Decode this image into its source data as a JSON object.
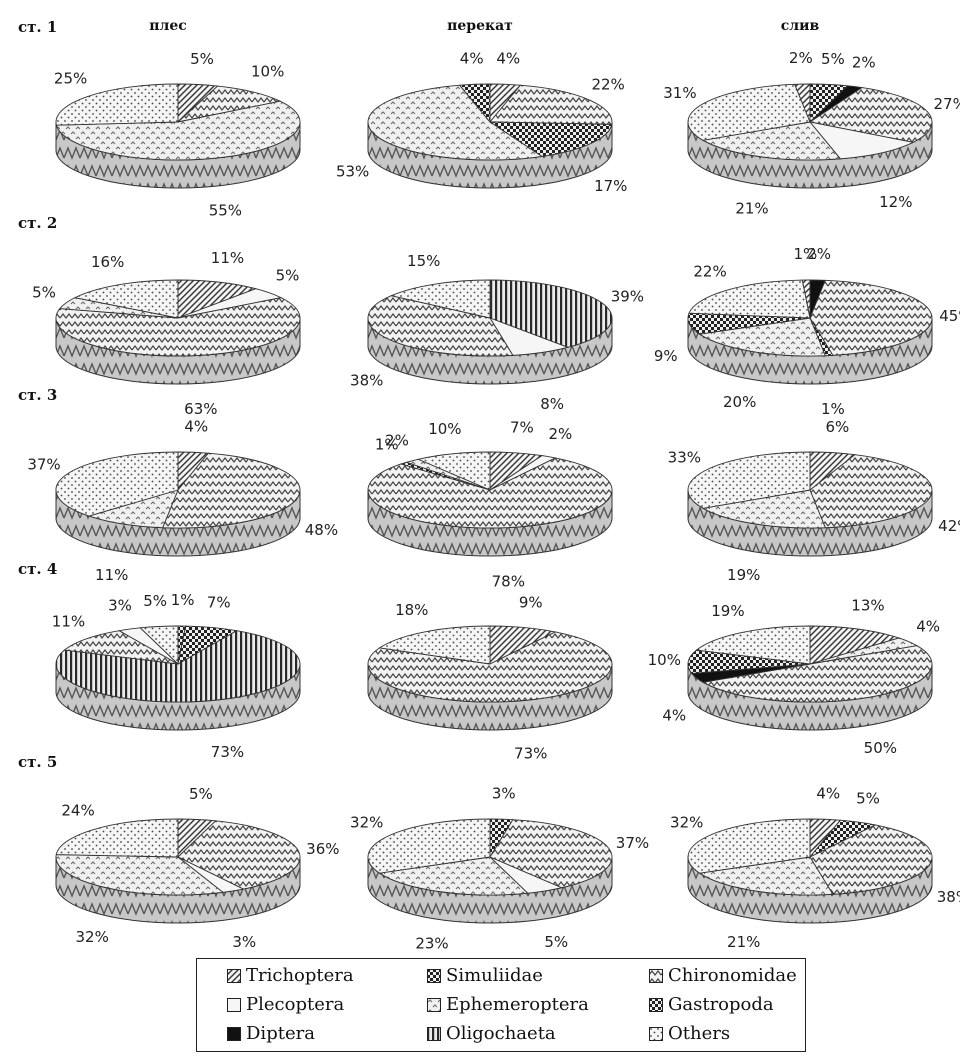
{
  "column_headers": [
    "плес",
    "перекат",
    "слив"
  ],
  "row_labels": [
    "ст. 1",
    "ст. 2",
    "ст. 3",
    "ст. 4",
    "ст. 5"
  ],
  "legend": [
    {
      "name": "Trichoptera",
      "pattern": "diag",
      "color": "#4a4a4a"
    },
    {
      "name": "Simuliidae",
      "pattern": "check",
      "color": "#2a2a2a"
    },
    {
      "name": "Chironomidae",
      "pattern": "zigzag",
      "color": "#5a5a5a"
    },
    {
      "name": "Plecoptera",
      "pattern": "plain",
      "color": "#eeeeee"
    },
    {
      "name": "Ephemeroptera",
      "pattern": "dots",
      "color": "#7a7a7a"
    },
    {
      "name": "Gastropoda",
      "pattern": "check",
      "color": "#1a1a1a"
    },
    {
      "name": "Diptera",
      "pattern": "solid",
      "color": "#111111"
    },
    {
      "name": "Oligochaeta",
      "pattern": "vstripes",
      "color": "#333333"
    },
    {
      "name": "Others",
      "pattern": "dots2",
      "color": "#8a8a8a"
    }
  ],
  "chart_data": [
    {
      "type": "pie",
      "station": "ст. 1",
      "habitat": "плес",
      "slices": [
        {
          "category": "Trichoptera",
          "value": 5
        },
        {
          "category": "Chironomidae",
          "value": 10
        },
        {
          "category": "Ephemeroptera",
          "value": 55
        },
        {
          "category": "Others",
          "value": 25
        }
      ]
    },
    {
      "type": "pie",
      "station": "ст. 1",
      "habitat": "перекат",
      "slices": [
        {
          "category": "Trichoptera",
          "value": 4
        },
        {
          "category": "Chironomidae",
          "value": 22
        },
        {
          "category": "Gastropoda",
          "value": 17
        },
        {
          "category": "Ephemeroptera",
          "value": 53
        },
        {
          "category": "Simuliidae",
          "value": 4
        }
      ]
    },
    {
      "type": "pie",
      "station": "ст. 1",
      "habitat": "слив",
      "slices": [
        {
          "category": "Gastropoda",
          "value": 5
        },
        {
          "category": "Diptera",
          "value": 2
        },
        {
          "category": "Chironomidae",
          "value": 27
        },
        {
          "category": "Plecoptera",
          "value": 12
        },
        {
          "category": "Ephemeroptera",
          "value": 21
        },
        {
          "category": "Others",
          "value": 31
        },
        {
          "category": "Trichoptera",
          "value": 2
        }
      ]
    },
    {
      "type": "pie",
      "station": "ст. 2",
      "habitat": "плес",
      "slices": [
        {
          "category": "Trichoptera",
          "value": 11
        },
        {
          "category": "Plecoptera",
          "value": 5
        },
        {
          "category": "Chironomidae",
          "value": 63
        },
        {
          "category": "Ephemeroptera",
          "value": 5
        },
        {
          "category": "Others",
          "value": 16
        }
      ]
    },
    {
      "type": "pie",
      "station": "ст. 2",
      "habitat": "перекат",
      "slices": [
        {
          "category": "Oligochaeta",
          "value": 39
        },
        {
          "category": "Plecoptera",
          "value": 8
        },
        {
          "category": "Chironomidae",
          "value": 38
        },
        {
          "category": "Others",
          "value": 15
        }
      ]
    },
    {
      "type": "pie",
      "station": "ст. 2",
      "habitat": "слив",
      "slices": [
        {
          "category": "Diptera",
          "value": 2
        },
        {
          "category": "Chironomidae",
          "value": 45
        },
        {
          "category": "Gastropoda",
          "value": 1
        },
        {
          "category": "Ephemeroptera",
          "value": 20
        },
        {
          "category": "Simuliidae",
          "value": 9
        },
        {
          "category": "Others",
          "value": 22
        },
        {
          "category": "Trichoptera",
          "value": 1
        }
      ]
    },
    {
      "type": "pie",
      "station": "ст. 3",
      "habitat": "плес",
      "slices": [
        {
          "category": "Trichoptera",
          "value": 4
        },
        {
          "category": "Chironomidae",
          "value": 48
        },
        {
          "category": "Ephemeroptera",
          "value": 11
        },
        {
          "category": "Others",
          "value": 37
        }
      ]
    },
    {
      "type": "pie",
      "station": "ст. 3",
      "habitat": "перекат",
      "slices": [
        {
          "category": "Trichoptera",
          "value": 7
        },
        {
          "category": "Plecoptera",
          "value": 2
        },
        {
          "category": "Chironomidae",
          "value": 78
        },
        {
          "category": "Simuliidae",
          "value": 1
        },
        {
          "category": "Ephemeroptera",
          "value": 2
        },
        {
          "category": "Others",
          "value": 10
        }
      ]
    },
    {
      "type": "pie",
      "station": "ст. 3",
      "habitat": "слив",
      "slices": [
        {
          "category": "Trichoptera",
          "value": 6
        },
        {
          "category": "Chironomidae",
          "value": 42
        },
        {
          "category": "Ephemeroptera",
          "value": 19
        },
        {
          "category": "Others",
          "value": 33
        }
      ]
    },
    {
      "type": "pie",
      "station": "ст. 4",
      "habitat": "плес",
      "slices": [
        {
          "category": "Simuliidae",
          "value": 1
        },
        {
          "category": "Gastropoda",
          "value": 7
        },
        {
          "category": "Oligochaeta",
          "value": 73
        },
        {
          "category": "Chironomidae",
          "value": 11
        },
        {
          "category": "Plecoptera",
          "value": 3
        },
        {
          "category": "Others",
          "value": 5
        }
      ]
    },
    {
      "type": "pie",
      "station": "ст. 4",
      "habitat": "перекат",
      "slices": [
        {
          "category": "Trichoptera",
          "value": 9
        },
        {
          "category": "Chironomidae",
          "value": 73
        },
        {
          "category": "Others",
          "value": 18
        }
      ]
    },
    {
      "type": "pie",
      "station": "ст. 4",
      "habitat": "слив",
      "slices": [
        {
          "category": "Trichoptera",
          "value": 13
        },
        {
          "category": "Ephemeroptera",
          "value": 4
        },
        {
          "category": "Chironomidae",
          "value": 50
        },
        {
          "category": "Diptera",
          "value": 4
        },
        {
          "category": "Gastropoda",
          "value": 10
        },
        {
          "category": "Others",
          "value": 19
        }
      ]
    },
    {
      "type": "pie",
      "station": "ст. 5",
      "habitat": "плес",
      "slices": [
        {
          "category": "Trichoptera",
          "value": 5
        },
        {
          "category": "Chironomidae",
          "value": 36
        },
        {
          "category": "Plecoptera",
          "value": 3
        },
        {
          "category": "Ephemeroptera",
          "value": 32
        },
        {
          "category": "Others",
          "value": 24
        }
      ]
    },
    {
      "type": "pie",
      "station": "ст. 5",
      "habitat": "перекат",
      "slices": [
        {
          "category": "Simuliidae",
          "value": 3
        },
        {
          "category": "Chironomidae",
          "value": 37
        },
        {
          "category": "Plecoptera",
          "value": 5
        },
        {
          "category": "Ephemeroptera",
          "value": 23
        },
        {
          "category": "Others",
          "value": 32
        }
      ]
    },
    {
      "type": "pie",
      "station": "ст. 5",
      "habitat": "слив",
      "slices": [
        {
          "category": "Trichoptera",
          "value": 4
        },
        {
          "category": "Gastropoda",
          "value": 5
        },
        {
          "category": "Chironomidae",
          "value": 38
        },
        {
          "category": "Ephemeroptera",
          "value": 21
        },
        {
          "category": "Others",
          "value": 32
        }
      ]
    }
  ]
}
